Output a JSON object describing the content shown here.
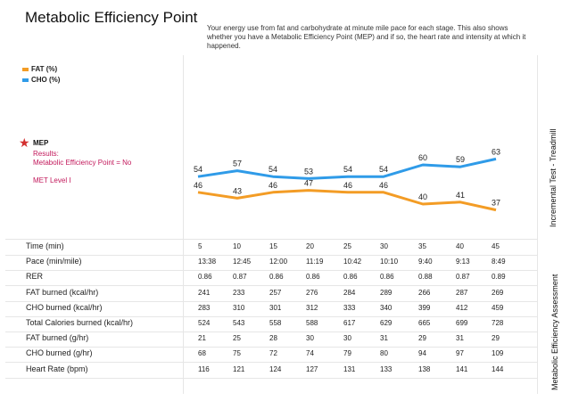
{
  "header": {
    "title": "Metabolic Efficiency Point",
    "description": "Your energy use from fat and carbohydrate at minute mile pace for each stage. This also shows whether you have a Metabolic Efficiency Point (MEP) and if so, the heart rate and intensity at which it happened."
  },
  "legend": [
    {
      "label": "FAT (%)",
      "color": "#f39c25"
    },
    {
      "label": "CHO (%)",
      "color": "#2f9be8"
    }
  ],
  "mep": {
    "label": "MEP",
    "results": "Results:",
    "result_text": "Metabolic Efficiency Point = No",
    "met_level": "MET Level I",
    "star_color": "#d32f2f"
  },
  "side_labels": {
    "top": "Incremental Test - Treadmill",
    "bottom": "Metabolic Efficiency Assessment"
  },
  "chart_data": {
    "type": "line",
    "x": [
      5,
      10,
      15,
      20,
      25,
      30,
      35,
      40,
      45
    ],
    "series": [
      {
        "name": "FAT (%)",
        "color": "#f39c25",
        "values": [
          46,
          43,
          46,
          47,
          46,
          46,
          40,
          41,
          37
        ]
      },
      {
        "name": "CHO (%)",
        "color": "#2f9be8",
        "values": [
          54,
          57,
          54,
          53,
          54,
          54,
          60,
          59,
          63
        ]
      }
    ],
    "ylim": [
      0,
      100
    ],
    "grid": true
  },
  "table": {
    "rows": [
      {
        "label": "Time (min)",
        "values": [
          "5",
          "10",
          "15",
          "20",
          "25",
          "30",
          "35",
          "40",
          "45"
        ]
      },
      {
        "label": "Pace (min/mile)",
        "values": [
          "13:38",
          "12:45",
          "12:00",
          "11:19",
          "10:42",
          "10:10",
          "9:40",
          "9:13",
          "8:49"
        ]
      },
      {
        "label": "RER",
        "values": [
          "0.86",
          "0.87",
          "0.86",
          "0.86",
          "0.86",
          "0.86",
          "0.88",
          "0.87",
          "0.89"
        ]
      },
      {
        "label": "FAT burned (kcal/hr)",
        "values": [
          "241",
          "233",
          "257",
          "276",
          "284",
          "289",
          "266",
          "287",
          "269"
        ]
      },
      {
        "label": "CHO burned (kcal/hr)",
        "values": [
          "283",
          "310",
          "301",
          "312",
          "333",
          "340",
          "399",
          "412",
          "459"
        ]
      },
      {
        "label": "Total Calories burned (kcal/hr)",
        "values": [
          "524",
          "543",
          "558",
          "588",
          "617",
          "629",
          "665",
          "699",
          "728"
        ]
      },
      {
        "label": "FAT burned (g/hr)",
        "values": [
          "21",
          "25",
          "28",
          "30",
          "30",
          "31",
          "29",
          "31",
          "29"
        ]
      },
      {
        "label": "CHO burned (g/hr)",
        "values": [
          "68",
          "75",
          "72",
          "74",
          "79",
          "80",
          "94",
          "97",
          "109"
        ]
      },
      {
        "label": "Heart Rate (bpm)",
        "values": [
          "116",
          "121",
          "124",
          "127",
          "131",
          "133",
          "138",
          "141",
          "144"
        ]
      }
    ]
  }
}
